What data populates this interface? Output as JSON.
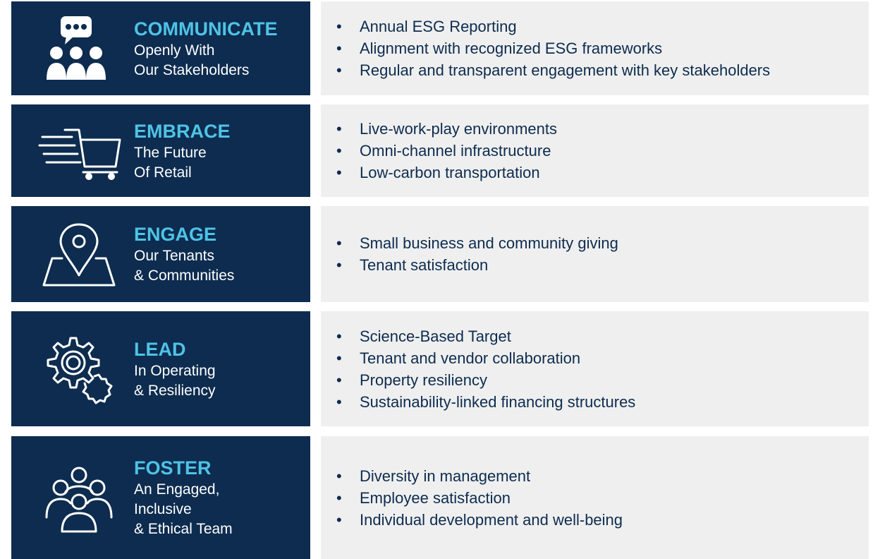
{
  "rows": [
    {
      "title": "COMMUNICATE",
      "subtitle": [
        "Openly With",
        "Our Stakeholders"
      ],
      "bullets": [
        "Annual ESG Reporting",
        "Alignment with recognized ESG frameworks",
        "Regular and transparent engagement with key stakeholders"
      ]
    },
    {
      "title": "EMBRACE",
      "subtitle": [
        "The Future",
        "Of Retail"
      ],
      "bullets": [
        "Live-work-play environments",
        "Omni-channel infrastructure",
        "Low-carbon transportation"
      ]
    },
    {
      "title": "ENGAGE",
      "subtitle": [
        "Our Tenants",
        "& Communities"
      ],
      "bullets": [
        "Small business and community giving",
        "Tenant satisfaction"
      ]
    },
    {
      "title": "LEAD",
      "subtitle": [
        "In Operating",
        "& Resiliency"
      ],
      "bullets": [
        "Science-Based Target",
        "Tenant and vendor collaboration",
        "Property resiliency",
        "Sustainability-linked financing structures"
      ]
    },
    {
      "title": "FOSTER",
      "subtitle": [
        "An Engaged,",
        "Inclusive",
        "& Ethical Team"
      ],
      "bullets": [
        "Diversity in management",
        "Employee satisfaction",
        "Individual development and well-being"
      ]
    }
  ]
}
